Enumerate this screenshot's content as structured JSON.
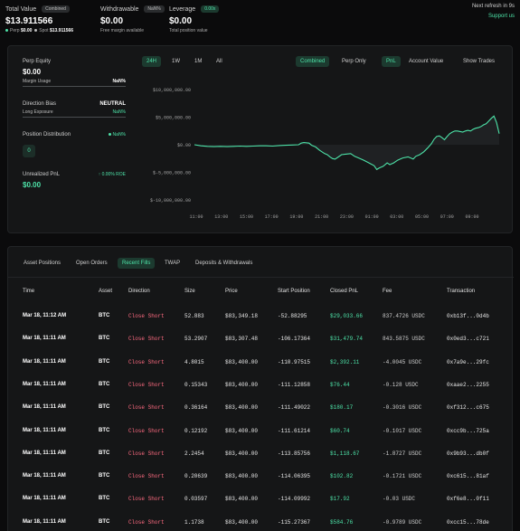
{
  "top": {
    "total_value_label": "Total Value",
    "total_value_pill": "Combined",
    "total_value": "$13.911566",
    "perp_label": "Perp",
    "perp_value": "$0.00",
    "spot_label": "Spot",
    "spot_value": "$13.911566",
    "withdrawable_label": "Withdrawable",
    "withdrawable_pill": "NaN%",
    "withdrawable_value": "$0.00",
    "withdrawable_sub": "Free margin available",
    "leverage_label": "Leverage",
    "leverage_pill": "0.00x",
    "leverage_value": "$0.00",
    "leverage_sub": "Total position value",
    "refresh_text": "Next refresh in 9s",
    "support_link": "Support us"
  },
  "left": {
    "perp_equity_label": "Perp Equity",
    "perp_equity_value": "$0.00",
    "margin_usage_label": "Margin Usage",
    "margin_usage_value": "NaN%",
    "direction_bias_label": "Direction Bias",
    "direction_bias_value": "NEUTRAL",
    "long_exposure_label": "Long Exposure",
    "long_exposure_value": "NaN%",
    "position_distribution_label": "Position Distribution",
    "position_distribution_pct": "NaN%",
    "position_count": "0",
    "unrealized_label": "Unrealized PnL",
    "unrealized_roe": "↑ 0.00% ROE",
    "unrealized_value": "$0.00"
  },
  "chart_tabs": {
    "time": [
      "24H",
      "1W",
      "1M",
      "All"
    ],
    "mode": [
      "Combined",
      "Perp Only"
    ],
    "metric": [
      "PnL",
      "Account Value"
    ],
    "show_trades": "Show Trades"
  },
  "chart_data": {
    "type": "line",
    "y_ticks": [
      "$10,000,000.00",
      "$5,000,000.00",
      "$0.00",
      "$-5,000,000.00",
      "$-10,000,000.00"
    ],
    "x_ticks": [
      "11:00",
      "13:00",
      "15:00",
      "17:00",
      "19:00",
      "21:00",
      "23:00",
      "01:00",
      "03:00",
      "05:00",
      "07:00",
      "09:00"
    ],
    "ylim": [
      -10000000,
      10000000
    ],
    "x": [
      0,
      0.5,
      1,
      1.5,
      2,
      2.5,
      3,
      3.5,
      4,
      4.5,
      5,
      5.5,
      6,
      6.5,
      7,
      7.5,
      8,
      8.2,
      8.4,
      8.8,
      9,
      9.3,
      9.6,
      10,
      10.2,
      10.4,
      10.6,
      10.8,
      11,
      11.3,
      11.6,
      12,
      12.3,
      12.6,
      13,
      13.4,
      13.8,
      14,
      14.2,
      14.5,
      14.8,
      15,
      15.3,
      15.6,
      15.8,
      16,
      16.4,
      16.8,
      17,
      17.3,
      17.6,
      17.9,
      18.2,
      18.4,
      18.6,
      18.8,
      19.0,
      19.2,
      19.4,
      19.6,
      19.8,
      20.0,
      20.2,
      20.4,
      20.6,
      20.8,
      21,
      21.2,
      21.4,
      21.6,
      21.8,
      22,
      22.2,
      22.4,
      22.6,
      22.8,
      23,
      23.2,
      23.4
    ],
    "y": [
      0,
      -200000,
      -300000,
      -350000,
      -300000,
      -350000,
      -300000,
      -250000,
      -300000,
      -250000,
      -200000,
      -200000,
      -250000,
      -150000,
      -100000,
      -50000,
      0,
      300000,
      400000,
      300000,
      -100000,
      -400000,
      -1000000,
      -1600000,
      -1800000,
      -2200000,
      -2500000,
      -2600000,
      -2300000,
      -1800000,
      -1700000,
      -1600000,
      -2100000,
      -2400000,
      -2800000,
      -3300000,
      -3800000,
      -4500000,
      -4200000,
      -3900000,
      -3300000,
      -3600000,
      -3300000,
      -2800000,
      -2600000,
      -2400000,
      -2200000,
      -2600000,
      -2100000,
      -1800000,
      -1300000,
      -600000,
      200000,
      1000000,
      1500000,
      1600000,
      1300000,
      900000,
      1500000,
      2000000,
      2300000,
      2500000,
      2500000,
      2400000,
      2300000,
      2500000,
      2600000,
      2500000,
      2800000,
      3000000,
      3100000,
      3300000,
      3600000,
      3800000,
      4300000,
      4800000,
      5200000,
      4000000,
      2000000
    ]
  },
  "table": {
    "tabs": [
      "Asset Positions",
      "Open Orders",
      "Recent Fills",
      "TWAP",
      "Deposits & Withdrawals"
    ],
    "headers": [
      "Time",
      "Asset",
      "Direction",
      "Size",
      "Price",
      "Start Position",
      "Closed PnL",
      "Fee",
      "Transaction"
    ],
    "rows": [
      [
        "Mar 18, 11:12 AM",
        "BTC",
        "Close Short",
        "52.883",
        "$83,349.18",
        "-52.88295",
        "$29,033.66",
        "837.4726 USDC",
        "0xb13f...0d4b"
      ],
      [
        "Mar 18, 11:11 AM",
        "BTC",
        "Close Short",
        "53.2907",
        "$83,307.48",
        "-106.17364",
        "$31,479.74",
        "843.5875 USDC",
        "0x0ed3...c721"
      ],
      [
        "Mar 18, 11:11 AM",
        "BTC",
        "Close Short",
        "4.8015",
        "$83,400.00",
        "-110.97515",
        "$2,392.11",
        "-4.0045 USDC",
        "0x7a9e...29fc"
      ],
      [
        "Mar 18, 11:11 AM",
        "BTC",
        "Close Short",
        "0.15343",
        "$83,400.00",
        "-111.12858",
        "$76.44",
        "-0.128 USDC",
        "0xaae2...2255"
      ],
      [
        "Mar 18, 11:11 AM",
        "BTC",
        "Close Short",
        "0.36164",
        "$83,400.00",
        "-111.49022",
        "$180.17",
        "-0.3016 USDC",
        "0xf312...c675"
      ],
      [
        "Mar 18, 11:11 AM",
        "BTC",
        "Close Short",
        "0.12192",
        "$83,400.00",
        "-111.61214",
        "$60.74",
        "-0.1017 USDC",
        "0xcc9b...725a"
      ],
      [
        "Mar 18, 11:11 AM",
        "BTC",
        "Close Short",
        "2.2454",
        "$83,400.00",
        "-113.85756",
        "$1,118.67",
        "-1.8727 USDC",
        "0x9b93...db0f"
      ],
      [
        "Mar 18, 11:11 AM",
        "BTC",
        "Close Short",
        "0.20639",
        "$83,400.00",
        "-114.06395",
        "$102.82",
        "-0.1721 USDC",
        "0xc615...81af"
      ],
      [
        "Mar 18, 11:11 AM",
        "BTC",
        "Close Short",
        "0.03597",
        "$83,400.00",
        "-114.09992",
        "$17.92",
        "-0.03 USDC",
        "0xf6e8...0f11"
      ],
      [
        "Mar 18, 11:11 AM",
        "BTC",
        "Close Short",
        "1.1738",
        "$83,400.00",
        "-115.27367",
        "$584.76",
        "-0.9789 USDC",
        "0xcc15...78de"
      ]
    ]
  },
  "colors": {
    "accent": "#4de3a8",
    "negative": "#ff6b81",
    "bg": "#0b0b0c",
    "panel": "#151617"
  }
}
